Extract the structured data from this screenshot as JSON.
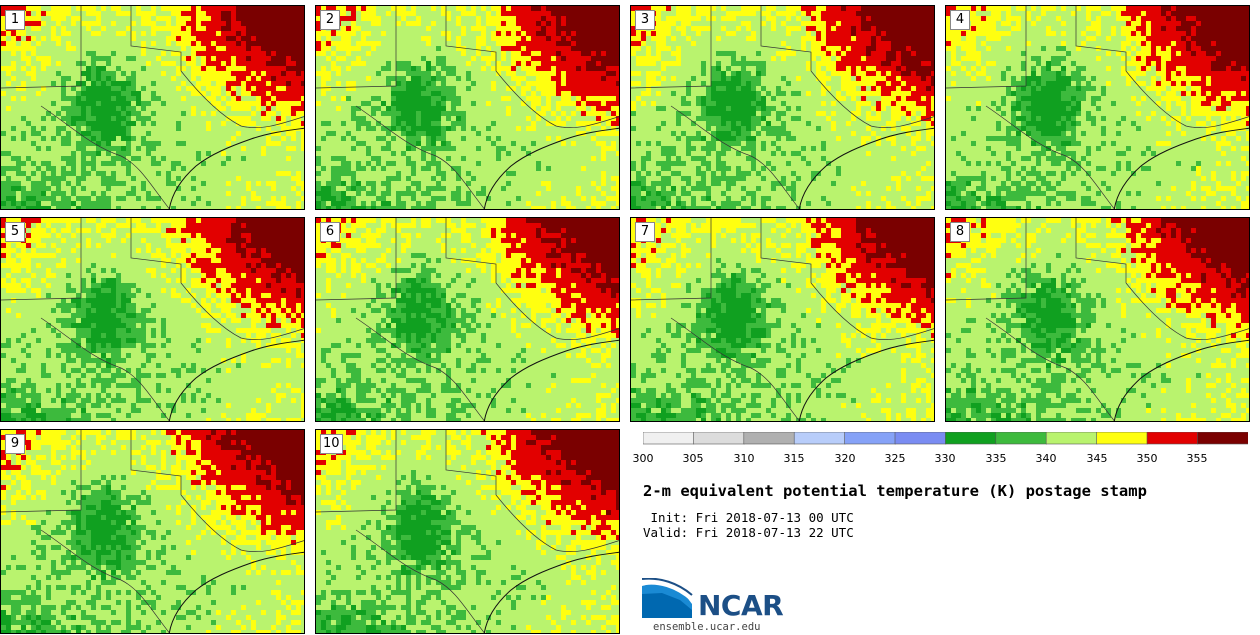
{
  "panels": [
    {
      "label": "1"
    },
    {
      "label": "2"
    },
    {
      "label": "3"
    },
    {
      "label": "4"
    },
    {
      "label": "5"
    },
    {
      "label": "6"
    },
    {
      "label": "7"
    },
    {
      "label": "8"
    },
    {
      "label": "9"
    },
    {
      "label": "10"
    }
  ],
  "colorbar": {
    "ticks": [
      "300",
      "305",
      "310",
      "315",
      "320",
      "325",
      "330",
      "335",
      "340",
      "345",
      "350",
      "355"
    ],
    "colors": [
      "#f0f0f0",
      "#dcdcdc",
      "#b0b0b0",
      "#b8cdfa",
      "#86a2f7",
      "#7a8cf2",
      "#10a020",
      "#3dba3d",
      "#b9f36e",
      "#ffff10",
      "#e20000",
      "#7a0000"
    ]
  },
  "title": "2-m equivalent potential temperature (K) postage stamp",
  "init": " Init: Fri 2018-07-13 00 UTC",
  "valid": "Valid: Fri 2018-07-13 22 UTC",
  "logo": {
    "name": "NCAR",
    "url": "ensemble.ucar.edu"
  },
  "field_colors": {
    "green_light": "#b9f36e",
    "green_mid": "#3dba3d",
    "green_dark": "#10a020",
    "yellow": "#ffff10",
    "red": "#e20000",
    "dark_red": "#7a0000"
  }
}
